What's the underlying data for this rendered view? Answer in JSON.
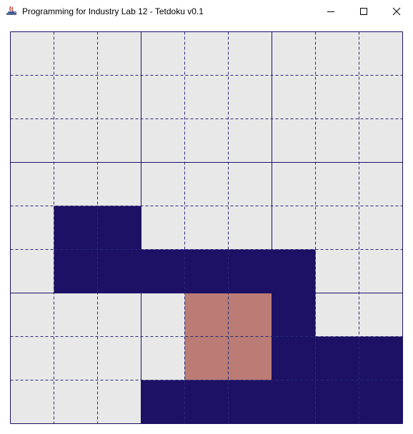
{
  "window": {
    "title": "Programming for Industry Lab 12 - Tetdoku v0.1",
    "controls": {
      "minimize_icon": "minimize-icon",
      "maximize_icon": "maximize-icon",
      "close_icon": "close-icon"
    }
  },
  "board": {
    "rows": 9,
    "cols": 9,
    "colors": {
      "empty": "#e8e8e8",
      "filled": "#1c1165",
      "active": "#ba7c74",
      "dashed_line": "#2a2a7a",
      "box_line": "#1c1165"
    },
    "legend": {
      "0": "empty",
      "1": "filled",
      "2": "active"
    },
    "cells": [
      [
        0,
        0,
        0,
        0,
        0,
        0,
        0,
        0,
        0
      ],
      [
        0,
        0,
        0,
        0,
        0,
        0,
        0,
        0,
        0
      ],
      [
        0,
        0,
        0,
        0,
        0,
        0,
        0,
        0,
        0
      ],
      [
        0,
        0,
        0,
        0,
        0,
        0,
        0,
        0,
        0
      ],
      [
        0,
        1,
        1,
        0,
        0,
        0,
        0,
        0,
        0
      ],
      [
        0,
        1,
        1,
        1,
        1,
        1,
        1,
        0,
        0
      ],
      [
        0,
        0,
        0,
        0,
        2,
        2,
        1,
        0,
        0
      ],
      [
        0,
        0,
        0,
        0,
        2,
        2,
        1,
        1,
        1
      ],
      [
        0,
        0,
        0,
        1,
        1,
        1,
        1,
        1,
        1
      ]
    ]
  }
}
